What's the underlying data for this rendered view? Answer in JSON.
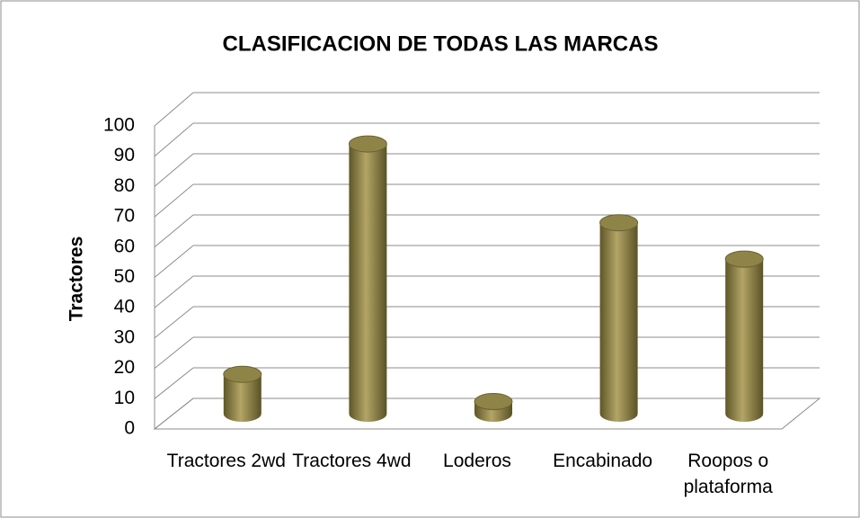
{
  "chart_data": {
    "type": "bar",
    "title": "CLASIFICACION DE TODAS LAS MARCAS",
    "y_label": "Tractores",
    "categories": [
      "Tractores 2wd",
      "Tractores 4wd",
      "Loderos",
      "Encabinado",
      "Roopos o plataforma"
    ],
    "values": [
      13,
      89,
      4,
      63,
      51
    ],
    "color": "#8f8447",
    "ylim": [
      0,
      100
    ],
    "yticks": [
      0,
      10,
      20,
      30,
      40,
      50,
      60,
      70,
      80,
      90,
      100
    ],
    "grid": true
  }
}
